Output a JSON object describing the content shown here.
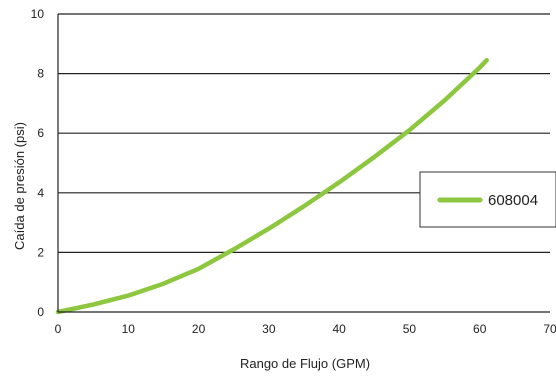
{
  "chart_data": {
    "type": "line",
    "title": "",
    "xlabel": "Rango de Flujo (GPM)",
    "ylabel": "Caída de presión (psi)",
    "xlim": [
      0,
      70
    ],
    "ylim": [
      0,
      10
    ],
    "xticks": [
      0,
      10,
      20,
      30,
      40,
      50,
      60,
      70
    ],
    "yticks": [
      0,
      2,
      4,
      6,
      8,
      10
    ],
    "grid": "horizontal",
    "legend_position": "right",
    "series": [
      {
        "name": "608004",
        "color": "#8dc63f",
        "x": [
          0,
          5,
          10,
          15,
          20,
          25,
          30,
          35,
          40,
          45,
          50,
          55,
          60,
          61
        ],
        "y": [
          0,
          0.25,
          0.55,
          0.95,
          1.45,
          2.1,
          2.8,
          3.55,
          4.35,
          5.2,
          6.1,
          7.1,
          8.2,
          8.45
        ]
      }
    ]
  }
}
